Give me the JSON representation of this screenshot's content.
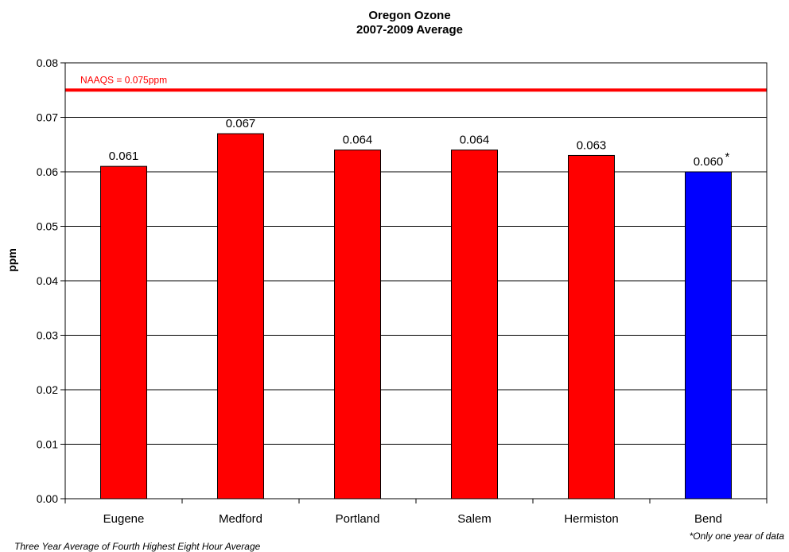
{
  "chart_data": {
    "type": "bar",
    "title": [
      "Oregon Ozone",
      "2007-2009 Average"
    ],
    "ylabel": "ppm",
    "xlabel": "",
    "ylim": [
      0,
      0.08
    ],
    "yticks": [
      "0.00",
      "0.01",
      "0.02",
      "0.03",
      "0.04",
      "0.05",
      "0.06",
      "0.07",
      "0.08"
    ],
    "grid": true,
    "categories": [
      "Eugene",
      "Medford",
      "Portland",
      "Salem",
      "Hermiston",
      "Bend"
    ],
    "values": [
      0.061,
      0.067,
      0.064,
      0.064,
      0.063,
      0.06
    ],
    "data_labels": [
      "0.061",
      "0.067",
      "0.064",
      "0.064",
      "0.063",
      "0.060"
    ],
    "bar_colors": [
      "#ff0000",
      "#ff0000",
      "#ff0000",
      "#ff0000",
      "#ff0000",
      "#0000ff"
    ],
    "reference_line": {
      "value": 0.075,
      "label": "NAAQS = 0.075ppm",
      "color": "#ff0000"
    },
    "annotations": {
      "asterisk": "*",
      "asterisk_note": "*Only one year of data",
      "footnote": "Three Year Average of Fourth Highest Eight Hour Average"
    }
  }
}
